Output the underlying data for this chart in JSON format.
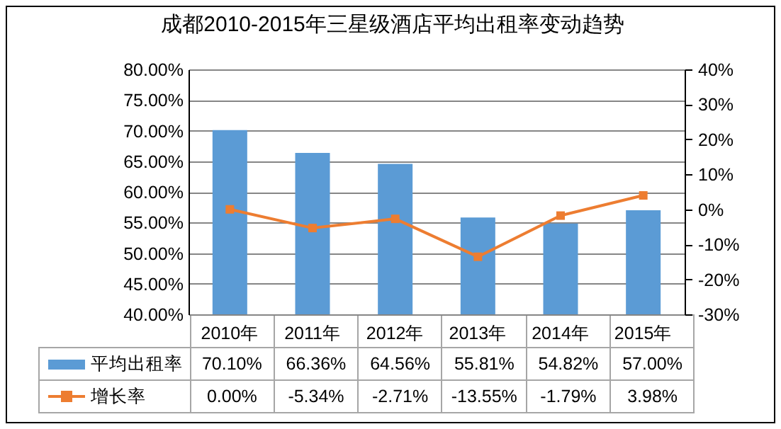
{
  "chart_data": {
    "type": "bar",
    "title": "成都2010-2015年三星级酒店平均出租率变动趋势",
    "categories": [
      "2010年",
      "2011年",
      "2012年",
      "2013年",
      "2014年",
      "2015年"
    ],
    "series": [
      {
        "name": "平均出租率",
        "color": "#5b9bd5",
        "values": [
          70.1,
          66.36,
          64.56,
          55.81,
          54.82,
          57.0
        ],
        "value_labels": [
          "70.10%",
          "66.36%",
          "64.56%",
          "55.81%",
          "54.82%",
          "57.00%"
        ]
      },
      {
        "name": "增长率",
        "type": "line",
        "axis": "y2",
        "color": "#ed7d31",
        "values": [
          0.0,
          -5.34,
          -2.71,
          -13.55,
          -1.79,
          3.98
        ],
        "value_labels": [
          "0.00%",
          "-5.34%",
          "-2.71%",
          "-13.55%",
          "-1.79%",
          "3.98%"
        ]
      }
    ],
    "ylim": [
      40,
      80
    ],
    "yticks": [
      {
        "value": 40,
        "label": "40.00%"
      },
      {
        "value": 45,
        "label": "45.00%"
      },
      {
        "value": 50,
        "label": "50.00%"
      },
      {
        "value": 55,
        "label": "55.00%"
      },
      {
        "value": 60,
        "label": "60.00%"
      },
      {
        "value": 65,
        "label": "65.00%"
      },
      {
        "value": 70,
        "label": "70.00%"
      },
      {
        "value": 75,
        "label": "75.00%"
      },
      {
        "value": 80,
        "label": "80.00%"
      }
    ],
    "y2lim": [
      -30,
      40
    ],
    "y2ticks": [
      {
        "value": -30,
        "label": "-30%"
      },
      {
        "value": -20,
        "label": "-20%"
      },
      {
        "value": -10,
        "label": "-10%"
      },
      {
        "value": 0,
        "label": "0%"
      },
      {
        "value": 10,
        "label": "10%"
      },
      {
        "value": 20,
        "label": "20%"
      },
      {
        "value": 30,
        "label": "30%"
      },
      {
        "value": 40,
        "label": "40%"
      }
    ],
    "grid": "y",
    "legend": "bottom",
    "marker": "square",
    "line_style": "solid"
  }
}
